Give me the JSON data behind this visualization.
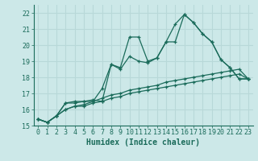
{
  "title": "",
  "xlabel": "Humidex (Indice chaleur)",
  "background_color": "#cce8e8",
  "grid_color": "#b8d8d8",
  "line_color": "#1a6b5a",
  "xlim": [
    -0.5,
    23.5
  ],
  "ylim": [
    15,
    22.5
  ],
  "yticks": [
    15,
    16,
    17,
    18,
    19,
    20,
    21,
    22
  ],
  "xticks": [
    0,
    1,
    2,
    3,
    4,
    5,
    6,
    7,
    8,
    9,
    10,
    11,
    12,
    13,
    14,
    15,
    16,
    17,
    18,
    19,
    20,
    21,
    22,
    23
  ],
  "series": [
    [
      15.4,
      15.2,
      15.6,
      16.4,
      16.4,
      16.5,
      16.6,
      16.5,
      18.8,
      18.6,
      20.5,
      20.5,
      19.0,
      19.2,
      20.2,
      21.3,
      21.9,
      21.4,
      20.7,
      20.2,
      19.1,
      18.6,
      17.9,
      17.9
    ],
    [
      15.4,
      15.2,
      15.6,
      16.4,
      16.5,
      16.5,
      16.5,
      17.3,
      18.8,
      18.5,
      19.3,
      19.0,
      18.9,
      19.2,
      20.2,
      20.2,
      21.9,
      21.4,
      20.7,
      20.2,
      19.1,
      18.6,
      17.9,
      17.9
    ],
    [
      15.4,
      15.2,
      15.6,
      16.0,
      16.2,
      16.2,
      16.4,
      16.5,
      16.7,
      16.8,
      17.0,
      17.1,
      17.2,
      17.3,
      17.4,
      17.5,
      17.6,
      17.7,
      17.8,
      17.9,
      18.0,
      18.1,
      18.2,
      17.9
    ],
    [
      15.4,
      15.2,
      15.6,
      16.0,
      16.2,
      16.3,
      16.5,
      16.7,
      16.9,
      17.0,
      17.2,
      17.3,
      17.4,
      17.5,
      17.7,
      17.8,
      17.9,
      18.0,
      18.1,
      18.2,
      18.3,
      18.4,
      18.5,
      17.9
    ]
  ]
}
